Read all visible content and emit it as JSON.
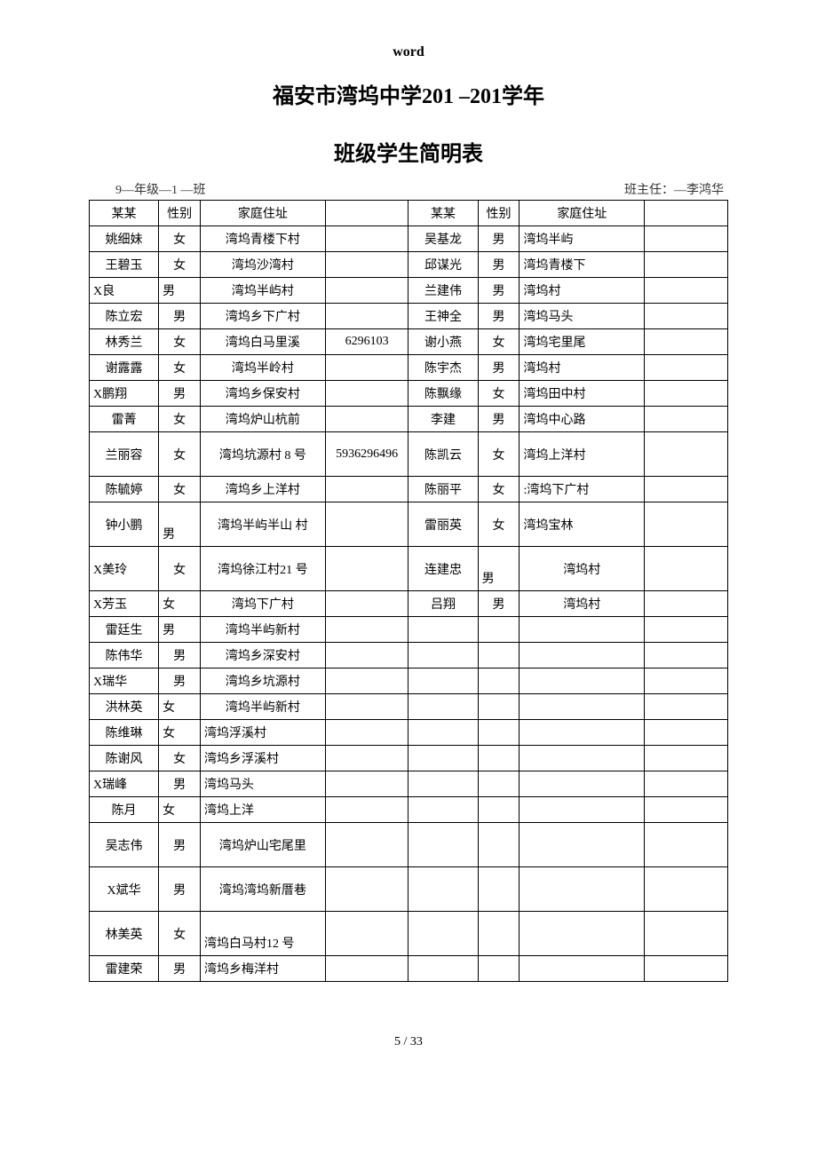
{
  "header_label": "word",
  "title": "福安市湾坞中学201 –201学年",
  "subtitle": "班级学生简明表",
  "class_info": "9—年级—1 —班",
  "teacher_info": "班主任：—李鸿华",
  "columns": {
    "name": "某某",
    "gender": "性别",
    "address": "家庭住址"
  },
  "left_rows": [
    {
      "name": "姚细妹",
      "gender": "女",
      "addr": "湾坞青楼下村",
      "phone": ""
    },
    {
      "name": "王碧玉",
      "gender": "女",
      "addr": "湾坞沙湾村",
      "phone": ""
    },
    {
      "name": "X良",
      "gender": "男",
      "addr": "湾坞半屿村",
      "phone": "",
      "g_align": "left",
      "n_align": "left"
    },
    {
      "name": "陈立宏",
      "gender": "男",
      "addr": "湾坞乡下广村",
      "phone": ""
    },
    {
      "name": "林秀兰",
      "gender": "女",
      "addr": "湾坞白马里溪",
      "phone": "6296103"
    },
    {
      "name": "谢露露",
      "gender": "女",
      "addr": "湾坞半岭村",
      "phone": ""
    },
    {
      "name": "X鹏翔",
      "gender": "男",
      "addr": "湾坞乡保安村",
      "phone": "",
      "n_align": "left"
    },
    {
      "name": "雷菁",
      "gender": "女",
      "addr": "湾坞炉山杭前",
      "phone": ""
    },
    {
      "name": "兰丽容",
      "gender": "女",
      "addr": "湾坞坑源村 8 号",
      "phone": "5936296496"
    },
    {
      "name": "陈毓婷",
      "gender": "女",
      "addr": "湾坞乡上洋村",
      "phone": ""
    },
    {
      "name": "钟小鹏",
      "gender": "男",
      "addr": "湾坞半屿半山 村",
      "phone": "",
      "g_valign": "bottom",
      "g_align": "left"
    },
    {
      "name": "X美玲",
      "gender": "女",
      "addr": "湾坞徐江村21 号",
      "phone": "",
      "n_align": "left"
    },
    {
      "name": "X芳玉",
      "gender": "女",
      "addr": "湾坞下广村",
      "phone": "",
      "n_align": "left",
      "g_align": "left"
    },
    {
      "name": "雷廷生",
      "gender": "男",
      "addr": "湾坞半屿新村",
      "phone": "",
      "g_align": "left"
    },
    {
      "name": "陈伟华",
      "gender": "男",
      "addr": "湾坞乡深安村",
      "phone": ""
    },
    {
      "name": "X瑞华",
      "gender": "男",
      "addr": "湾坞乡坑源村",
      "phone": "",
      "n_align": "left"
    },
    {
      "name": "洪林英",
      "gender": "女",
      "addr": "湾坞半屿新村",
      "phone": "",
      "g_align": "left"
    },
    {
      "name": "陈维琳",
      "gender": "女",
      "addr": "湾坞浮溪村",
      "phone": "",
      "g_align": "left",
      "addr_align": "left"
    },
    {
      "name": "陈谢风",
      "gender": "女",
      "addr": "湾坞乡浮溪村",
      "phone": "",
      "addr_align": "left"
    },
    {
      "name": "X瑞峰",
      "gender": "男",
      "addr": "湾坞马头",
      "phone": "",
      "n_align": "left",
      "addr_align": "left"
    },
    {
      "name": "陈月",
      "gender": "女",
      "addr": "湾坞上洋",
      "phone": "",
      "g_align": "left",
      "addr_align": "left"
    },
    {
      "name": "吴志伟",
      "gender": "男",
      "addr": "湾坞炉山宅尾里",
      "phone": ""
    },
    {
      "name": "X斌华",
      "gender": "男",
      "addr": "湾坞湾坞新厝巷",
      "phone": ""
    },
    {
      "name": "林美英",
      "gender": "女",
      "addr": "湾坞白马村12 号",
      "phone": "",
      "addr_valign": "bottom",
      "addr_align": "left"
    },
    {
      "name": "雷建荣",
      "gender": "男",
      "addr": "湾坞乡梅洋村",
      "phone": "",
      "addr_align": "left"
    }
  ],
  "right_rows": [
    {
      "name": "吴基龙",
      "gender": "男",
      "addr": "湾坞半屿",
      "addr_align": "left"
    },
    {
      "name": "邱谋光",
      "gender": "男",
      "addr": "湾坞青楼下",
      "addr_align": "left"
    },
    {
      "name": "兰建伟",
      "gender": "男",
      "addr": "湾坞村",
      "addr_align": "left"
    },
    {
      "name": "王神全",
      "gender": "男",
      "addr": "湾坞马头",
      "addr_align": "left"
    },
    {
      "name": "谢小燕",
      "gender": "女",
      "addr": "湾坞宅里尾",
      "addr_align": "left"
    },
    {
      "name": "陈宇杰",
      "gender": "男",
      "addr": "湾坞村",
      "addr_align": "left"
    },
    {
      "name": "陈飘缘",
      "gender": "女",
      "addr": "湾坞田中村",
      "addr_align": "left"
    },
    {
      "name": "李建",
      "gender": "男",
      "addr": "湾坞中心路",
      "addr_align": "left"
    },
    {
      "name": "陈凯云",
      "gender": "女",
      "addr": "湾坞上洋村",
      "addr_align": "left"
    },
    {
      "name": "陈丽平",
      "gender": "女",
      "addr": ":湾坞下广村",
      "addr_align": "left"
    },
    {
      "name": "雷丽英",
      "gender": "女",
      "addr": "湾坞宝林",
      "addr_align": "left"
    },
    {
      "name": "连建忠",
      "gender": "男",
      "addr": "湾坞村",
      "g_valign": "bottom",
      "g_align": "left"
    },
    {
      "name": "吕翔",
      "gender": "男",
      "addr": "湾坞村"
    }
  ],
  "page_number": "5 / 33",
  "colors": {
    "text": "#000000",
    "border": "#000000",
    "background": "#ffffff"
  },
  "typography": {
    "title_fontsize": 24,
    "body_fontsize": 14,
    "font_family": "SimSun"
  }
}
